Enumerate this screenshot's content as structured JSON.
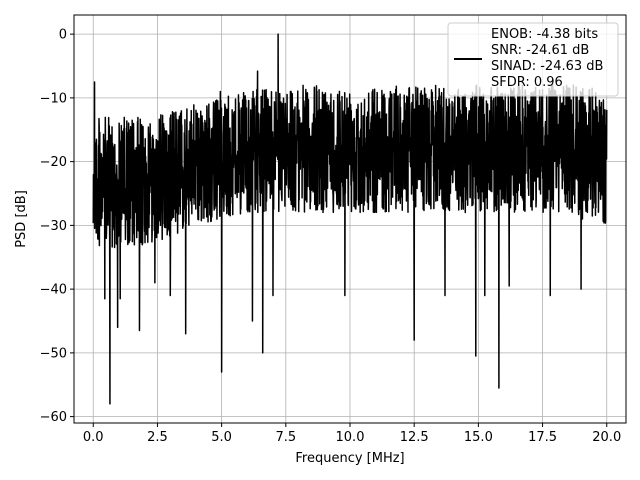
{
  "chart_data": {
    "type": "line",
    "title": "",
    "xlabel": "Frequency [MHz]",
    "ylabel": "PSD [dB]",
    "xlim": [
      -0.75,
      20.75
    ],
    "ylim": [
      -61,
      3
    ],
    "x_ticks": [
      0.0,
      2.5,
      5.0,
      7.5,
      10.0,
      12.5,
      15.0,
      17.5,
      20.0
    ],
    "x_tick_labels": [
      "0.0",
      "2.5",
      "5.0",
      "7.5",
      "10.0",
      "12.5",
      "15.0",
      "17.5",
      "20.0"
    ],
    "y_ticks": [
      0,
      -10,
      -20,
      -30,
      -40,
      -50,
      -60
    ],
    "y_tick_labels": [
      "0",
      "−10",
      "−20",
      "−30",
      "−40",
      "−50",
      "−60"
    ],
    "grid": true,
    "legend_position": "top-right",
    "legend_lines": [
      "ENOB: -4.38 bits",
      "SNR: -24.61 dB",
      "SINAD: -24.63 dB",
      "SFDR: 0.96"
    ],
    "series": [
      {
        "color": "#000000",
        "x_start": 0.0,
        "x_end": 20.0,
        "band_upper": {
          "x": [
            0,
            1,
            2,
            3,
            4,
            5,
            6,
            7,
            8,
            9,
            10,
            11,
            12,
            13,
            14,
            15,
            16,
            17,
            18,
            19,
            20
          ],
          "y": [
            -13,
            -13,
            -13,
            -12,
            -11,
            -10,
            -9,
            -8,
            -8,
            -8,
            -8,
            -8,
            -8,
            -8,
            -8,
            -8,
            -8,
            -8,
            -8,
            -8,
            -9
          ]
        },
        "band_lower": {
          "x": [
            0,
            1,
            2,
            3,
            4,
            5,
            6,
            7,
            8,
            9,
            10,
            11,
            12,
            13,
            14,
            15,
            16,
            17,
            18,
            19,
            20
          ],
          "y": [
            -33,
            -34,
            -33,
            -32,
            -30,
            -29,
            -28,
            -28,
            -28,
            -28,
            -28,
            -28,
            -28,
            -28,
            -28,
            -28,
            -28,
            -28,
            -28,
            -29,
            -30
          ]
        },
        "peaks": [
          {
            "x": 0.05,
            "y": -7.5
          },
          {
            "x": 7.2,
            "y": 0.0
          },
          {
            "x": 6.4,
            "y": -5.8
          },
          {
            "x": 4.95,
            "y": -9.0
          },
          {
            "x": 18.7,
            "y": -8.0
          }
        ],
        "dips": [
          {
            "x": 0.45,
            "y": -41.5
          },
          {
            "x": 0.65,
            "y": -58.0
          },
          {
            "x": 0.95,
            "y": -46.0
          },
          {
            "x": 1.05,
            "y": -41.5
          },
          {
            "x": 1.8,
            "y": -46.5
          },
          {
            "x": 2.4,
            "y": -39.0
          },
          {
            "x": 3.0,
            "y": -41.0
          },
          {
            "x": 3.6,
            "y": -47.0
          },
          {
            "x": 5.0,
            "y": -53.0
          },
          {
            "x": 6.2,
            "y": -45.0
          },
          {
            "x": 6.6,
            "y": -50.0
          },
          {
            "x": 7.0,
            "y": -41.0
          },
          {
            "x": 9.8,
            "y": -41.0
          },
          {
            "x": 12.5,
            "y": -48.0
          },
          {
            "x": 13.7,
            "y": -41.0
          },
          {
            "x": 14.9,
            "y": -50.5
          },
          {
            "x": 15.25,
            "y": -41.0
          },
          {
            "x": 15.8,
            "y": -55.5
          },
          {
            "x": 16.2,
            "y": -39.5
          },
          {
            "x": 17.8,
            "y": -41.0
          },
          {
            "x": 19.0,
            "y": -40.0
          }
        ]
      }
    ]
  }
}
